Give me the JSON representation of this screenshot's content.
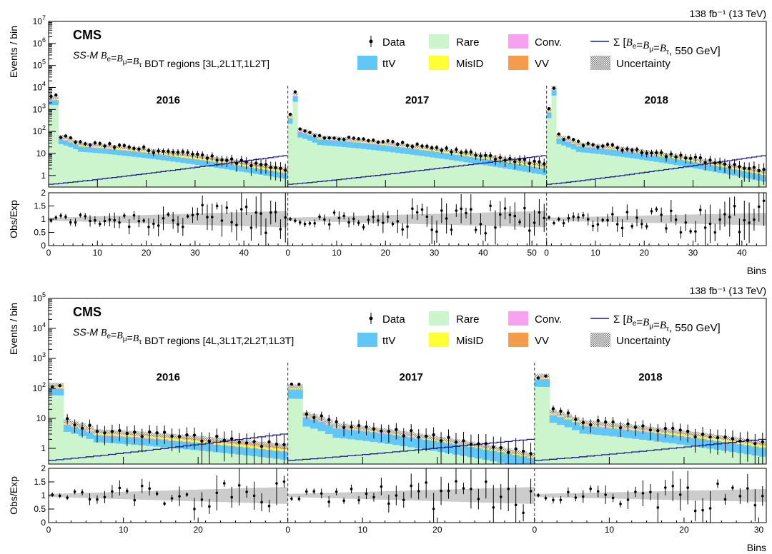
{
  "legend": {
    "data": "Data",
    "rare": "Rare",
    "conv": "Conv.",
    "signal_prefix": "Σ [",
    "signal_text": "B_e=B_μ=B_τ, 550 GeV]",
    "ttv": "ttV",
    "misid": "MisID",
    "vv": "VV",
    "uncertainty": "Uncertainty"
  },
  "colors": {
    "rare": "#ccf5cc",
    "ttv": "#60c8f8",
    "misid": "#ffff33",
    "vv": "#f49b4c",
    "conv": "#f7a2f0",
    "signal": "#1a1a9a",
    "unc": "#cccccc"
  },
  "chart_data": [
    {
      "type": "bar",
      "stacked": true,
      "log_y": true,
      "lumi": "138 fb⁻¹ (13 TeV)",
      "cms": "CMS",
      "subtitle_prefix": "SS-M",
      "subtitle_text": "B_e=B_μ=B_τ BDT regions [3L,2L1T,1L2T]",
      "ylabel": "Events / bin",
      "ratio_ylabel": "Obs/Exp",
      "xlabel": "Bins",
      "ylim": [
        0.3,
        10000000
      ],
      "ratio_ylim": [
        0,
        2
      ],
      "y_ticks": [
        "1",
        "10",
        "10^2",
        "10^3",
        "10^4",
        "10^5",
        "10^6",
        "10^7"
      ],
      "ratio_ticks": [
        "0",
        "0.5",
        "1",
        "1.5",
        "2"
      ],
      "eras": [
        {
          "label": "2016",
          "nbins": 49,
          "first_total": 3500,
          "peak_total": 3500,
          "plateau": 30,
          "end": 2,
          "ttv_frac": 0.3,
          "sig_start": 0.4,
          "sig_end": 8,
          "x_ticks": [
            "0",
            "10",
            "20",
            "30",
            "40"
          ]
        },
        {
          "label": "2017",
          "nbins": 53,
          "first_total": 500,
          "peak_total": 5000,
          "plateau": 60,
          "end": 3,
          "ttv_frac": 0.35,
          "sig_start": 0.4,
          "sig_end": 8,
          "x_ticks": [
            "0",
            "10",
            "20",
            "30",
            "40",
            "50"
          ]
        },
        {
          "label": "2018",
          "nbins": 45,
          "first_total": 900,
          "peak_total": 9500,
          "plateau": 30,
          "end": 1.5,
          "ttv_frac": 0.35,
          "sig_start": 0.4,
          "sig_end": 8,
          "x_ticks": [
            "0",
            "10",
            "20",
            "30",
            "40"
          ]
        }
      ]
    },
    {
      "type": "bar",
      "stacked": true,
      "log_y": true,
      "lumi": "138 fb⁻¹ (13 TeV)",
      "cms": "CMS",
      "subtitle_prefix": "SS-M",
      "subtitle_text": "B_e=B_μ=B_τ BDT regions [4L,3L1T,2L2T,1L3T]",
      "ylabel": "Events / bin",
      "ratio_ylabel": "Obs/Exp",
      "xlabel": "Bins",
      "ylim": [
        0.3,
        100000
      ],
      "ratio_ylim": [
        0,
        2
      ],
      "y_ticks": [
        "1",
        "10",
        "10^2",
        "10^3",
        "10^4",
        "10^5"
      ],
      "ratio_ticks": [
        "0",
        "0.5",
        "1",
        "1.5",
        "2"
      ],
      "eras": [
        {
          "label": "2016",
          "nbins": 32,
          "first_total": 130,
          "peak_total": 130,
          "plateau": 4,
          "end": 1.2,
          "ttv_frac": 0.3,
          "sig_start": 0.4,
          "sig_end": 3,
          "x_ticks": [
            "0",
            "10",
            "20"
          ]
        },
        {
          "label": "2017",
          "nbins": 33,
          "first_total": 100,
          "peak_total": 100,
          "plateau": 6,
          "end": 0.6,
          "ttv_frac": 0.45,
          "sig_start": 0.4,
          "sig_end": 2,
          "x_ticks": [
            "0",
            "10",
            "20"
          ]
        },
        {
          "label": "2018",
          "nbins": 31,
          "first_total": 250,
          "peak_total": 250,
          "plateau": 8,
          "end": 1.5,
          "ttv_frac": 0.35,
          "sig_start": 0.4,
          "sig_end": 2,
          "x_ticks": [
            "0",
            "10",
            "20",
            "30"
          ]
        }
      ]
    }
  ]
}
